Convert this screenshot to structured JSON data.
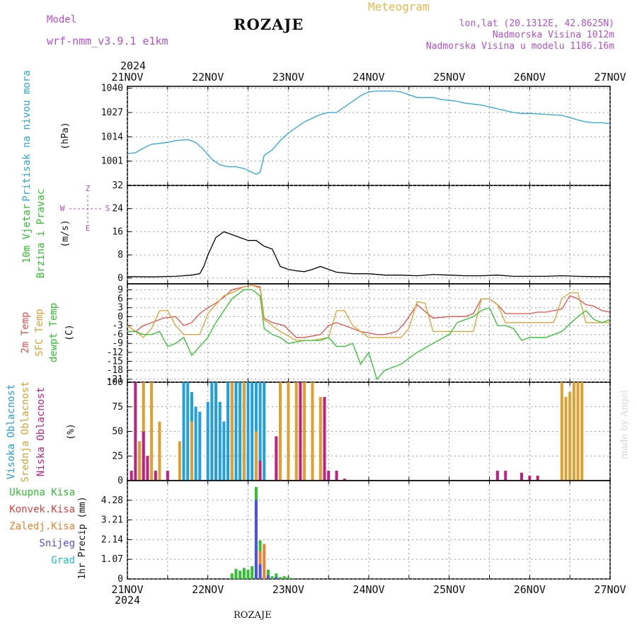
{
  "header": {
    "title": "ROZAJE",
    "model_label": "Model",
    "model_name": "wrf-nmm_v3.9.1 e1km",
    "subtitle": "Meteogram",
    "lonlat": "lon,lat (20.1312E, 42.8625N)",
    "elevation": "Nadmorska Visina 1012m",
    "model_elevation": "Nadmorska Visina u modelu 1186.16m",
    "footer": "ROZAJE",
    "watermark": "made by Angel"
  },
  "colors": {
    "pressure": "#29a8e0",
    "wind_speed": "#000000",
    "t2m": "#e8504a",
    "sfc_temp": "#e0a030",
    "dewpoint": "#2ac42a",
    "high_cloud": "#20a0e0",
    "mid_cloud": "#e0a030",
    "low_cloud": "#c02080",
    "total_precip": "#30c030",
    "conv_precip": "#e04040",
    "frozen_precip": "#f08030",
    "snow": "#5050e0",
    "hail": "#20c0c0",
    "label_purple": "#b44fd4",
    "label_gold": "#e8b84d"
  },
  "chart_data": [
    {
      "type": "line",
      "panel": "pressure",
      "ylabel_left": "Pritisak na nivou mora",
      "ylabel_unit": "(hPa)",
      "ylim": [
        988,
        1041
      ],
      "yticks": [
        1001,
        1014,
        1027,
        1040
      ],
      "x_start_year": "2024",
      "x_ticks": [
        "21NOV",
        "22NOV",
        "23NOV",
        "24NOV",
        "25NOV",
        "26NOV",
        "27NOV"
      ],
      "x_range_days": [
        0,
        6
      ],
      "grid": true,
      "series": [
        {
          "key": "pressure",
          "x": [
            0,
            0.1,
            0.2,
            0.3,
            0.5,
            0.6,
            0.75,
            0.85,
            0.95,
            1.05,
            1.15,
            1.25,
            1.35,
            1.45,
            1.55,
            1.6,
            1.65,
            1.7,
            1.8,
            1.9,
            2.0,
            2.1,
            2.2,
            2.3,
            2.4,
            2.5,
            2.6,
            2.7,
            2.8,
            2.9,
            3.0,
            3.1,
            3.2,
            3.3,
            3.4,
            3.6,
            3.8,
            3.9,
            4.0,
            4.1,
            4.2,
            4.4,
            4.6,
            4.8,
            4.9,
            5.0,
            5.2,
            5.4,
            5.6,
            5.7,
            5.8,
            5.9,
            6.0
          ],
          "values": [
            1005,
            1005.5,
            1008,
            1010,
            1011,
            1012,
            1012.5,
            1011,
            1007,
            1002,
            999,
            998,
            998,
            997,
            995,
            994,
            995,
            1004,
            1007,
            1012,
            1016,
            1019,
            1022,
            1024,
            1026,
            1027,
            1027,
            1030,
            1033,
            1036,
            1038,
            1038.5,
            1038.5,
            1038.5,
            1038,
            1035,
            1035,
            1034,
            1033.5,
            1033,
            1032,
            1031,
            1029,
            1027,
            1026.5,
            1026.5,
            1026,
            1025.5,
            1023,
            1022,
            1021.5,
            1021.5,
            1021
          ]
        }
      ]
    },
    {
      "type": "line",
      "panel": "wind",
      "ylabel_left": [
        "10m Vjetar",
        "Brzina i Pravac"
      ],
      "ylabel_unit": "(m/s)",
      "compass_legend": [
        "Z",
        "E",
        "W",
        "S"
      ],
      "ylim": [
        -2,
        32
      ],
      "yticks": [
        0,
        8,
        16,
        24,
        32
      ],
      "x_range_days": [
        0,
        6
      ],
      "grid": true,
      "series": [
        {
          "key": "wind_speed",
          "x": [
            0,
            0.3,
            0.6,
            0.8,
            0.9,
            0.95,
            1.0,
            1.05,
            1.1,
            1.15,
            1.2,
            1.3,
            1.4,
            1.5,
            1.6,
            1.7,
            1.8,
            1.9,
            2.0,
            2.1,
            2.2,
            2.3,
            2.4,
            2.6,
            2.8,
            3.0,
            3.2,
            3.4,
            3.6,
            3.8,
            4.0,
            4.2,
            4.4,
            4.6,
            4.8,
            5.0,
            5.2,
            5.4,
            5.6,
            5.8,
            6.0
          ],
          "values": [
            0.5,
            0.4,
            0.6,
            1.0,
            1.5,
            4,
            8,
            11,
            14,
            15,
            16,
            15,
            14,
            13,
            13,
            11,
            10,
            4,
            3,
            2.5,
            2.2,
            3,
            4,
            2,
            1.5,
            1.5,
            1.0,
            1.0,
            0.8,
            1.2,
            1.0,
            0.8,
            0.8,
            1.0,
            0.6,
            0.6,
            0.6,
            0.8,
            0.6,
            0.5,
            0.5
          ]
        }
      ]
    },
    {
      "type": "line",
      "panel": "temperature",
      "ylabel_left": [
        "2m Temp",
        "SFC Temp",
        "dewpt Temp"
      ],
      "ylabel_unit": "(C)",
      "ylim": [
        -22,
        11
      ],
      "yticks": [
        -21,
        -18,
        -15,
        -12,
        -9,
        -6,
        -3,
        0,
        3,
        6,
        9
      ],
      "x_range_days": [
        0,
        6
      ],
      "grid": true,
      "series": [
        {
          "key": "t2m",
          "x": [
            0,
            0.1,
            0.2,
            0.3,
            0.45,
            0.6,
            0.7,
            0.8,
            0.9,
            1.0,
            1.1,
            1.2,
            1.3,
            1.45,
            1.55,
            1.65,
            1.7,
            1.8,
            1.95,
            2.1,
            2.2,
            2.4,
            2.5,
            2.6,
            2.7,
            2.9,
            3.1,
            3.2,
            3.35,
            3.45,
            3.6,
            3.8,
            4.0,
            4.2,
            4.3,
            4.4,
            4.5,
            4.6,
            4.7,
            4.8,
            5.0,
            5.1,
            5.2,
            5.3,
            5.4,
            5.5,
            5.6,
            5.7,
            5.8,
            5.9,
            6.0
          ],
          "values": [
            -3,
            -5,
            -3,
            -2,
            -0.5,
            0,
            -3,
            -2,
            1,
            3,
            4.5,
            6.5,
            9,
            10,
            10.5,
            10,
            -0.5,
            -2,
            -3,
            -7,
            -7,
            -6,
            -3,
            -2,
            -3,
            -5,
            -6,
            -6,
            -5,
            -2,
            4,
            -0.5,
            0,
            0,
            1,
            6,
            6,
            4,
            1,
            1,
            1,
            1.5,
            1.5,
            2,
            2.5,
            7,
            6,
            4,
            3.5,
            2,
            1.5
          ]
        },
        {
          "key": "sfc_temp",
          "x": [
            0,
            0.1,
            0.2,
            0.3,
            0.4,
            0.5,
            0.6,
            0.7,
            0.9,
            1.0,
            1.1,
            1.2,
            1.3,
            1.45,
            1.55,
            1.65,
            1.7,
            1.8,
            1.9,
            2.1,
            2.3,
            2.5,
            2.6,
            2.7,
            2.8,
            3.0,
            3.2,
            3.4,
            3.5,
            3.6,
            3.7,
            3.8,
            4.0,
            4.2,
            4.3,
            4.4,
            4.5,
            4.6,
            4.7,
            4.8,
            5.0,
            5.2,
            5.3,
            5.4,
            5.5,
            5.6,
            5.7,
            5.8,
            5.9,
            6.0
          ],
          "values": [
            -3,
            -5,
            -7,
            -4,
            2,
            2,
            -3,
            -6,
            -6,
            1,
            4,
            7,
            8,
            10,
            10.5,
            9.5,
            -1,
            -3,
            -5,
            -8,
            -8,
            -7,
            2,
            2,
            -3,
            -7,
            -7,
            -7,
            -4,
            5,
            4.5,
            -5,
            -5,
            -5,
            -5,
            6,
            6,
            4,
            -2,
            -2,
            -2,
            -2,
            -2,
            6,
            8,
            8,
            -2,
            -2,
            -2,
            -2
          ]
        },
        {
          "key": "dewpoint",
          "x": [
            0,
            0.1,
            0.2,
            0.3,
            0.4,
            0.5,
            0.6,
            0.7,
            0.8,
            0.9,
            1.0,
            1.1,
            1.2,
            1.3,
            1.45,
            1.55,
            1.65,
            1.7,
            1.8,
            1.9,
            2.0,
            2.2,
            2.4,
            2.5,
            2.6,
            2.7,
            2.8,
            2.9,
            3.0,
            3.1,
            3.2,
            3.4,
            3.6,
            3.8,
            4.0,
            4.1,
            4.2,
            4.3,
            4.4,
            4.5,
            4.6,
            4.7,
            4.8,
            4.9,
            5.0,
            5.2,
            5.4,
            5.6,
            5.7,
            5.8,
            5.9,
            6.0
          ],
          "values": [
            -5,
            -5,
            -6,
            -6,
            -5,
            -10,
            -9,
            -7,
            -13,
            -10,
            -7,
            -2,
            2,
            6,
            9,
            9,
            7,
            -4,
            -6,
            -7,
            -9,
            -8,
            -8,
            -7,
            -10,
            -10,
            -9,
            -16,
            -12,
            -21,
            -18,
            -16,
            -12,
            -9,
            -6,
            -2,
            -1,
            0,
            2,
            3,
            -3,
            -3,
            -4,
            -8,
            -7,
            -7,
            -5,
            0,
            2,
            -1,
            -2,
            -1
          ]
        }
      ]
    },
    {
      "type": "bar",
      "panel": "cloud",
      "ylabel_left": [
        "Visoka Oblacnost",
        "Srednja Oblacnost",
        "Niska Oblacnost"
      ],
      "ylabel_unit": "(%)",
      "ylim": [
        0,
        100
      ],
      "yticks": [
        0,
        25,
        50,
        75,
        100
      ],
      "x_range_days": [
        0,
        6
      ],
      "grid": true,
      "series": [
        {
          "key": "high_cloud",
          "x": [
            0.7,
            0.75,
            0.8,
            0.85,
            0.9,
            1.0,
            1.05,
            1.1,
            1.15,
            1.2,
            1.25,
            1.3,
            1.35,
            1.4,
            1.45,
            1.5,
            1.55,
            1.6,
            1.65,
            1.7,
            5.6
          ],
          "values": [
            100,
            100,
            90,
            75,
            70,
            80,
            100,
            100,
            80,
            60,
            100,
            100,
            100,
            100,
            100,
            100,
            100,
            100,
            100,
            100,
            5
          ]
        },
        {
          "key": "mid_cloud",
          "x": [
            0.15,
            0.2,
            0.3,
            0.4,
            0.65,
            0.8,
            1.3,
            1.45,
            1.6,
            1.9,
            2.0,
            2.1,
            2.2,
            2.3,
            2.4,
            5.4,
            5.45,
            5.5,
            5.55,
            5.6,
            5.65
          ],
          "values": [
            40,
            100,
            100,
            60,
            40,
            60,
            100,
            100,
            50,
            100,
            100,
            100,
            100,
            100,
            85,
            100,
            85,
            90,
            100,
            100,
            100
          ]
        },
        {
          "key": "low_cloud",
          "x": [
            0.05,
            0.1,
            0.2,
            0.25,
            0.35,
            0.5,
            1.65,
            1.85,
            2.15,
            2.45,
            2.5,
            2.6,
            2.7,
            4.6,
            4.7,
            4.9,
            5.0,
            5.1
          ],
          "values": [
            10,
            100,
            50,
            25,
            10,
            10,
            20,
            45,
            100,
            85,
            10,
            10,
            2,
            10,
            10,
            8,
            5,
            5
          ]
        }
      ]
    },
    {
      "type": "bar",
      "panel": "precipitation",
      "ylabel_left": [
        "Ukupna Kisa",
        "Konvek.Kisa",
        "Zaledj.Kisa",
        "Snijeg",
        "Grad"
      ],
      "ylabel_unit": "1hr Precip (mm)",
      "ylim": [
        0,
        5.35
      ],
      "yticks": [
        0,
        1.07,
        2.14,
        3.21,
        4.28
      ],
      "x_range_days": [
        0,
        6
      ],
      "grid": true,
      "series": [
        {
          "key": "total_precip",
          "x": [
            1.3,
            1.35,
            1.4,
            1.45,
            1.5,
            1.55,
            1.6,
            1.65,
            1.7,
            1.75,
            1.8,
            1.85,
            1.9,
            1.95,
            2.0,
            2.05
          ],
          "values": [
            0.3,
            0.55,
            0.45,
            0.6,
            0.5,
            0.7,
            5.0,
            2.1,
            0.2,
            0.5,
            0.15,
            0.3,
            0.1,
            0.15,
            0.1,
            0.05
          ]
        },
        {
          "key": "frozen_precip",
          "x": [
            1.65,
            1.7
          ],
          "values": [
            1.5,
            1.9
          ]
        },
        {
          "key": "snow",
          "x": [
            1.6,
            1.65,
            1.75,
            1.85
          ],
          "values": [
            4.3,
            0.8,
            0.2,
            0.1
          ]
        }
      ]
    }
  ]
}
